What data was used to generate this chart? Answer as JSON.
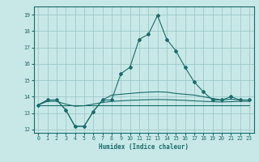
{
  "xlabel": "Humidex (Indice chaleur)",
  "xlim": [
    -0.5,
    23.5
  ],
  "ylim": [
    11.8,
    19.5
  ],
  "yticks": [
    12,
    13,
    14,
    15,
    16,
    17,
    18,
    19
  ],
  "xticks": [
    0,
    1,
    2,
    3,
    4,
    5,
    6,
    7,
    8,
    9,
    10,
    11,
    12,
    13,
    14,
    15,
    16,
    17,
    18,
    19,
    20,
    21,
    22,
    23
  ],
  "bg_color": "#c8e8e8",
  "grid_color": "#9dc8c8",
  "line_color": "#1a6b6b",
  "lines": [
    {
      "y": [
        13.5,
        13.8,
        13.8,
        13.2,
        12.2,
        12.2,
        13.1,
        13.8,
        13.8,
        15.4,
        15.8,
        17.5,
        17.8,
        18.95,
        17.5,
        16.8,
        15.8,
        14.9,
        14.3,
        13.8,
        13.8,
        14.0,
        13.8,
        13.8
      ],
      "markers": true
    },
    {
      "y": [
        13.5,
        13.8,
        13.8,
        13.2,
        12.2,
        12.2,
        13.1,
        13.8,
        14.1,
        14.15,
        14.2,
        14.25,
        14.28,
        14.3,
        14.28,
        14.2,
        14.15,
        14.1,
        14.0,
        13.9,
        13.8,
        13.85,
        13.8,
        13.8
      ],
      "markers": false
    },
    {
      "y": [
        13.5,
        13.72,
        13.72,
        13.55,
        13.42,
        13.45,
        13.55,
        13.65,
        13.72,
        13.75,
        13.78,
        13.8,
        13.82,
        13.83,
        13.82,
        13.8,
        13.78,
        13.75,
        13.72,
        13.7,
        13.68,
        13.7,
        13.72,
        13.72
      ],
      "markers": false
    },
    {
      "y": [
        13.5,
        13.5,
        13.5,
        13.5,
        13.5,
        13.5,
        13.5,
        13.5,
        13.5,
        13.5,
        13.5,
        13.5,
        13.5,
        13.5,
        13.5,
        13.5,
        13.5,
        13.5,
        13.5,
        13.5,
        13.5,
        13.5,
        13.5,
        13.5
      ],
      "markers": false
    }
  ]
}
